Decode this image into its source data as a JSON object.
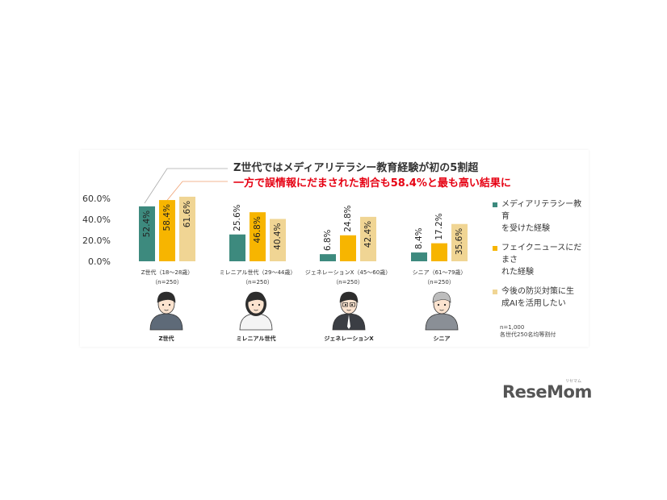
{
  "headline": {
    "line1": "Z世代ではメディアリテラシー教育経験が初の5割超",
    "line2": "一方で誤情報にだまされた割合も58.4%と最も高い結果に"
  },
  "colors": {
    "series1": "#3d8a7e",
    "series2": "#f7b500",
    "series3": "#f0d594",
    "headline1": "#333333",
    "headline2": "#e60012"
  },
  "chart_data": {
    "type": "bar",
    "categories": [
      "Z世代（18～28歳）",
      "ミレニアル世代（29～44歳）",
      "ジェネレーションX（45～60歳）",
      "シニア（61～79歳）"
    ],
    "category_n": [
      "（n=250）",
      "（n=250）",
      "（n=250）",
      "（n=250）"
    ],
    "series": [
      {
        "name": "メディアリテラシー教育を受けた経験",
        "values": [
          52.4,
          25.6,
          6.8,
          8.4
        ],
        "labels": [
          "52.4%",
          "25.6%",
          "6.8%",
          "8.4%"
        ]
      },
      {
        "name": "フェイクニュースにだまされた経験",
        "values": [
          58.4,
          46.8,
          24.8,
          17.2
        ],
        "labels": [
          "58.4%",
          "46.8%",
          "24.8%",
          "17.2%"
        ]
      },
      {
        "name": "今後の防災対策に生成AIを活用したい",
        "values": [
          61.6,
          40.4,
          42.4,
          35.6
        ],
        "labels": [
          "61.6%",
          "40.4%",
          "42.4%",
          "35.6%"
        ]
      }
    ],
    "yticks": [
      "0.0%",
      "20.0%",
      "40.0%",
      "60.0%"
    ],
    "ytick_values": [
      0,
      20,
      40,
      60
    ],
    "ylim": [
      0,
      60
    ],
    "legend_position": "right",
    "grid": false
  },
  "avatars": [
    {
      "label": "Z世代",
      "icon": "young-man-avatar-icon"
    },
    {
      "label": "ミレニアル世代",
      "icon": "woman-avatar-icon"
    },
    {
      "label": "ジェネレーションX",
      "icon": "businessman-avatar-icon"
    },
    {
      "label": "シニア",
      "icon": "senior-avatar-icon"
    }
  ],
  "legend_lines": [
    [
      "メディアリテラシー教育",
      "を受けた経験"
    ],
    [
      "フェイクニュースにだまさ",
      "れた経験"
    ],
    [
      "今後の防災対策に生",
      "成AIを活用したい"
    ]
  ],
  "note": {
    "line1": "n=1,000",
    "line2": "各世代250名均等割付"
  },
  "watermark": {
    "text": "ReseMom",
    "sub": "リセマム"
  }
}
